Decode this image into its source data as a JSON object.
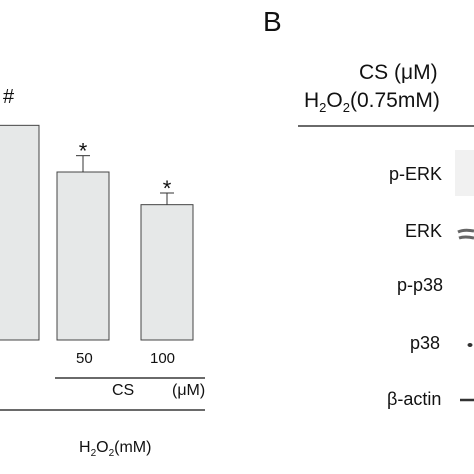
{
  "panel_b_label": "B",
  "blot_header": {
    "cs_label": "CS",
    "cs_unit": "(μM)",
    "h2o2_h": "H",
    "h2o2_sub1": "2",
    "h2o2_o": "O",
    "h2o2_sub2": "2",
    "h2o2_conc": "(0.75mM)"
  },
  "blot_rows": [
    "p-ERK",
    "ERK",
    "p-p38",
    "p38",
    "β-actin"
  ],
  "chart_data": {
    "type": "bar",
    "categories": [
      "",
      "50",
      "100"
    ],
    "values": [
      92,
      72,
      58
    ],
    "errors": [
      0,
      7,
      5
    ],
    "significance": [
      "#",
      "*",
      "*"
    ],
    "ylim": [
      0,
      120
    ],
    "cs_group_label": "CS",
    "cs_group_unit": "(μM)",
    "h2o2_group": {
      "h": "H",
      "sub1": "2",
      "o": "O",
      "sub2": "2",
      "unit": "(mM)"
    },
    "bar_color": "#e6e8e8",
    "grid": false
  },
  "colors": {
    "ink": "#111111",
    "bar_fill": "#e6e8e8",
    "bar_stroke": "#444444",
    "blot_band": "#555555"
  }
}
